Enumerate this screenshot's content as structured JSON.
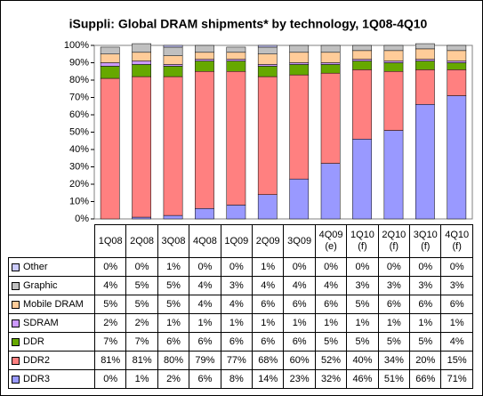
{
  "chart_data": {
    "type": "stacked_bar",
    "title": "iSuppli: Global DRAM shipments* by technology, 1Q08-4Q10",
    "categories": [
      "1Q08",
      "2Q08",
      "3Q08",
      "4Q08",
      "1Q09",
      "2Q09",
      "3Q09",
      "4Q09 (e)",
      "1Q10 (f)",
      "2Q10 (f)",
      "3Q10 (f)",
      "4Q10 (f)"
    ],
    "series": [
      {
        "name": "Other",
        "color": "#ccccff",
        "values": [
          0,
          0,
          1,
          0,
          0,
          1,
          0,
          0,
          0,
          0,
          0,
          0
        ],
        "value_labels": [
          "0%",
          "0%",
          "1%",
          "0%",
          "0%",
          "1%",
          "0%",
          "0%",
          "0%",
          "0%",
          "0%",
          "0%"
        ]
      },
      {
        "name": "Graphic",
        "color": "#c0c0c0",
        "values": [
          4,
          5,
          5,
          4,
          3,
          4,
          4,
          4,
          3,
          3,
          3,
          3
        ],
        "value_labels": [
          "4%",
          "5%",
          "5%",
          "4%",
          "3%",
          "4%",
          "4%",
          "4%",
          "3%",
          "3%",
          "3%",
          "3%"
        ]
      },
      {
        "name": "Mobile DRAM",
        "color": "#ffcc99",
        "values": [
          5,
          5,
          5,
          4,
          4,
          6,
          6,
          6,
          5,
          6,
          6,
          6
        ],
        "value_labels": [
          "5%",
          "5%",
          "5%",
          "4%",
          "4%",
          "6%",
          "6%",
          "6%",
          "5%",
          "6%",
          "6%",
          "6%"
        ]
      },
      {
        "name": "SDRAM",
        "color": "#cc99ff",
        "values": [
          2,
          2,
          1,
          1,
          1,
          1,
          1,
          1,
          1,
          1,
          1,
          1
        ],
        "value_labels": [
          "2%",
          "2%",
          "1%",
          "1%",
          "1%",
          "1%",
          "1%",
          "1%",
          "1%",
          "1%",
          "1%",
          "1%"
        ]
      },
      {
        "name": "DDR",
        "color": "#66a800",
        "values": [
          7,
          7,
          6,
          6,
          6,
          6,
          6,
          5,
          5,
          5,
          5,
          4
        ],
        "value_labels": [
          "7%",
          "7%",
          "6%",
          "6%",
          "6%",
          "6%",
          "6%",
          "5%",
          "5%",
          "5%",
          "5%",
          "4%"
        ]
      },
      {
        "name": "DDR2",
        "color": "#ff8080",
        "values": [
          81,
          81,
          80,
          79,
          77,
          68,
          60,
          52,
          40,
          34,
          20,
          15
        ],
        "value_labels": [
          "81%",
          "81%",
          "80%",
          "79%",
          "77%",
          "68%",
          "60%",
          "52%",
          "40%",
          "34%",
          "20%",
          "15%"
        ]
      },
      {
        "name": "DDR3",
        "color": "#9999ff",
        "values": [
          0,
          1,
          2,
          6,
          8,
          14,
          23,
          32,
          46,
          51,
          66,
          71
        ],
        "value_labels": [
          "0%",
          "1%",
          "2%",
          "6%",
          "8%",
          "14%",
          "23%",
          "32%",
          "46%",
          "51%",
          "66%",
          "71%"
        ]
      }
    ],
    "ylim": [
      0,
      100
    ],
    "yticks": [
      {
        "value": 0,
        "label": "0%"
      },
      {
        "value": 10,
        "label": "10%"
      },
      {
        "value": 20,
        "label": "20%"
      },
      {
        "value": 30,
        "label": "30%"
      },
      {
        "value": 40,
        "label": "40%"
      },
      {
        "value": 50,
        "label": "50%"
      },
      {
        "value": 60,
        "label": "60%"
      },
      {
        "value": 70,
        "label": "70%"
      },
      {
        "value": 80,
        "label": "80%"
      },
      {
        "value": 90,
        "label": "90%"
      },
      {
        "value": 100,
        "label": "100%"
      }
    ],
    "grid": false
  }
}
